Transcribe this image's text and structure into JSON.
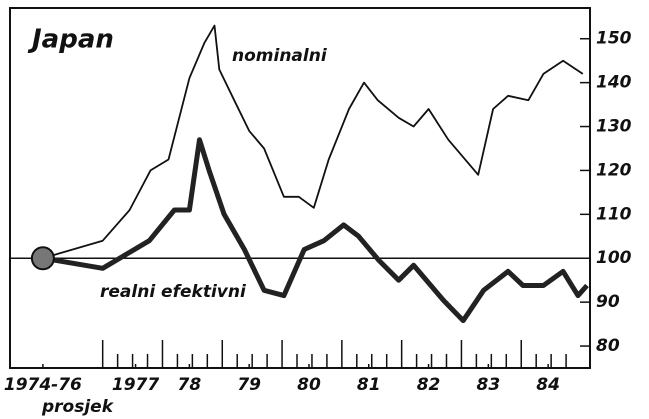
{
  "chart_data": {
    "type": "line",
    "title": "Japan",
    "x_note": "prosjek",
    "annotations": [
      "nominalni",
      "realni efektivni"
    ],
    "xlim": [
      1975.45,
      1985.15
    ],
    "xticks": [
      {
        "value": 1976.0,
        "label": "1974-76"
      },
      {
        "value": 1977.55,
        "label": "1977"
      },
      {
        "value": 1978.45,
        "label": "78"
      },
      {
        "value": 1979.45,
        "label": "79"
      },
      {
        "value": 1980.45,
        "label": "80"
      },
      {
        "value": 1981.45,
        "label": "81"
      },
      {
        "value": 1982.45,
        "label": "82"
      },
      {
        "value": 1983.45,
        "label": "83"
      },
      {
        "value": 1984.45,
        "label": "84"
      }
    ],
    "ylim": [
      75,
      157
    ],
    "yticks": [
      80,
      90,
      100,
      110,
      120,
      130,
      140,
      150
    ],
    "reference_line": 100,
    "series": [
      {
        "name": "nominalni",
        "color": "#111111",
        "x": [
          1976.0,
          1977.0,
          1977.45,
          1977.8,
          1978.1,
          1978.45,
          1978.7,
          1978.87,
          1978.95,
          1979.2,
          1979.45,
          1979.7,
          1980.03,
          1980.28,
          1980.53,
          1980.78,
          1981.12,
          1981.37,
          1981.6,
          1981.95,
          1982.2,
          1982.45,
          1982.78,
          1983.28,
          1983.53,
          1983.78,
          1984.12,
          1984.37,
          1984.7,
          1985.03
        ],
        "values": [
          100,
          104,
          111,
          120,
          122.5,
          141,
          149,
          153,
          143,
          136,
          129,
          125,
          114,
          114,
          111.5,
          122.5,
          134,
          140,
          136,
          132,
          130,
          134,
          127,
          119,
          134,
          137,
          136,
          142,
          145,
          142
        ]
      },
      {
        "name": "realni efektivni",
        "color": "#222222",
        "x": [
          1976.0,
          1977.0,
          1977.37,
          1977.78,
          1978.2,
          1978.45,
          1978.62,
          1978.78,
          1979.03,
          1979.37,
          1979.7,
          1980.03,
          1980.37,
          1980.7,
          1981.03,
          1981.28,
          1981.62,
          1981.95,
          1982.2,
          1982.7,
          1983.03,
          1983.37,
          1983.78,
          1984.03,
          1984.37,
          1984.7,
          1984.95,
          1985.1
        ],
        "values": [
          100,
          97.7,
          100.7,
          104,
          111,
          111,
          127,
          120,
          110,
          102,
          92.7,
          91.5,
          102,
          104,
          107.6,
          105,
          99.5,
          95,
          98.4,
          90.4,
          85.8,
          92.7,
          97,
          93.8,
          93.8,
          97,
          91.5,
          93.8
        ]
      }
    ]
  }
}
